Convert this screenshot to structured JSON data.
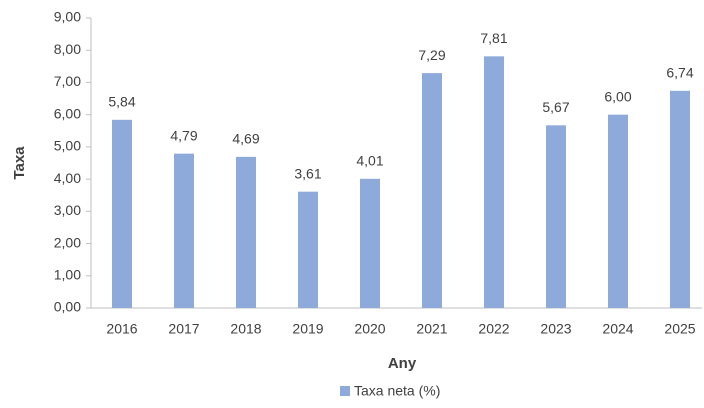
{
  "chart_data": {
    "type": "bar",
    "x_label": "Any",
    "y_label": "Taxa",
    "categories": [
      "2016",
      "2017",
      "2018",
      "2019",
      "2020",
      "2021",
      "2022",
      "2023",
      "2024",
      "2025"
    ],
    "series": [
      {
        "name": "Taxa neta (%)",
        "color": "#8eaadb",
        "values": [
          5.84,
          4.79,
          4.69,
          3.61,
          4.01,
          7.29,
          7.81,
          5.67,
          6.0,
          6.74
        ],
        "value_labels": [
          "5,84",
          "4,79",
          "4,69",
          "3,61",
          "4,01",
          "7,29",
          "7,81",
          "5,67",
          "6,00",
          "6,74"
        ]
      }
    ],
    "ylim": [
      0,
      9
    ],
    "yticks": [
      {
        "value": 0,
        "label": "0,00"
      },
      {
        "value": 1,
        "label": "1,00"
      },
      {
        "value": 2,
        "label": "2,00"
      },
      {
        "value": 3,
        "label": "3,00"
      },
      {
        "value": 4,
        "label": "4,00"
      },
      {
        "value": 5,
        "label": "5,00"
      },
      {
        "value": 6,
        "label": "6,00"
      },
      {
        "value": 7,
        "label": "7,00"
      },
      {
        "value": 8,
        "label": "8,00"
      },
      {
        "value": 9,
        "label": "9,00"
      }
    ],
    "grid": false,
    "legend": "bottom"
  }
}
